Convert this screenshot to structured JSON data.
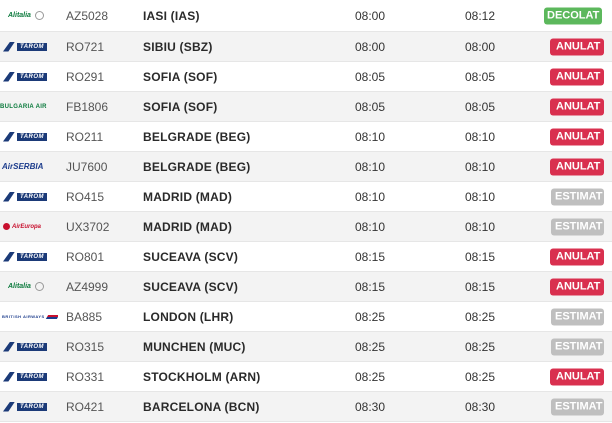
{
  "colors": {
    "decolat": "#5cb85c",
    "anulat": "#d9304f",
    "estimat": "#bfbfbf"
  },
  "flights": [
    {
      "airline_logo": "alitalia-logo",
      "logo_text": "Alitalia",
      "flight": "AZ5028",
      "destination": "IASI (IAS)",
      "scheduled": "08:00",
      "estimated": "08:12",
      "status": "DECOLAT"
    },
    {
      "airline_logo": "tarom-logo",
      "logo_text": "TAROM",
      "flight": "RO721",
      "destination": "SIBIU (SBZ)",
      "scheduled": "08:00",
      "estimated": "08:00",
      "status": "ANULAT"
    },
    {
      "airline_logo": "tarom-logo",
      "logo_text": "TAROM",
      "flight": "RO291",
      "destination": "SOFIA (SOF)",
      "scheduled": "08:05",
      "estimated": "08:05",
      "status": "ANULAT"
    },
    {
      "airline_logo": "bulgaria-air-logo",
      "logo_text": "BULGARIA AIR",
      "flight": "FB1806",
      "destination": "SOFIA (SOF)",
      "scheduled": "08:05",
      "estimated": "08:05",
      "status": "ANULAT"
    },
    {
      "airline_logo": "tarom-logo",
      "logo_text": "TAROM",
      "flight": "RO211",
      "destination": "BELGRADE (BEG)",
      "scheduled": "08:10",
      "estimated": "08:10",
      "status": "ANULAT"
    },
    {
      "airline_logo": "air-serbia-logo",
      "logo_text": "AirSERBIA",
      "flight": "JU7600",
      "destination": "BELGRADE (BEG)",
      "scheduled": "08:10",
      "estimated": "08:10",
      "status": "ANULAT"
    },
    {
      "airline_logo": "tarom-logo",
      "logo_text": "TAROM",
      "flight": "RO415",
      "destination": "MADRID (MAD)",
      "scheduled": "08:10",
      "estimated": "08:10",
      "status": "ESTIMAT"
    },
    {
      "airline_logo": "air-europa-logo",
      "logo_text": "AirEuropa",
      "flight": "UX3702",
      "destination": "MADRID (MAD)",
      "scheduled": "08:10",
      "estimated": "08:10",
      "status": "ESTIMAT"
    },
    {
      "airline_logo": "tarom-logo",
      "logo_text": "TAROM",
      "flight": "RO801",
      "destination": "SUCEAVA (SCV)",
      "scheduled": "08:15",
      "estimated": "08:15",
      "status": "ANULAT"
    },
    {
      "airline_logo": "alitalia-logo",
      "logo_text": "Alitalia",
      "flight": "AZ4999",
      "destination": "SUCEAVA (SCV)",
      "scheduled": "08:15",
      "estimated": "08:15",
      "status": "ANULAT"
    },
    {
      "airline_logo": "british-airways-logo",
      "logo_text": "BRITISH AIRWAYS",
      "flight": "BA885",
      "destination": "LONDON (LHR)",
      "scheduled": "08:25",
      "estimated": "08:25",
      "status": "ESTIMAT"
    },
    {
      "airline_logo": "tarom-logo",
      "logo_text": "TAROM",
      "flight": "RO315",
      "destination": "MUNCHEN (MUC)",
      "scheduled": "08:25",
      "estimated": "08:25",
      "status": "ESTIMAT"
    },
    {
      "airline_logo": "tarom-logo",
      "logo_text": "TAROM",
      "flight": "RO331",
      "destination": "STOCKHOLM (ARN)",
      "scheduled": "08:25",
      "estimated": "08:25",
      "status": "ANULAT"
    },
    {
      "airline_logo": "tarom-logo",
      "logo_text": "TAROM",
      "flight": "RO421",
      "destination": "BARCELONA (BCN)",
      "scheduled": "08:30",
      "estimated": "08:30",
      "status": "ESTIMAT"
    }
  ]
}
